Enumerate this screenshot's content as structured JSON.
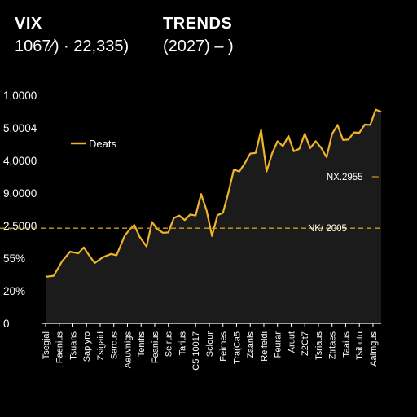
{
  "header": {
    "left_title": "VIX",
    "left_sub": "1067⁄) · 22,335)",
    "right_title": "TRENDS",
    "right_sub": "(2027) – )"
  },
  "chart_data": {
    "type": "line",
    "title": "",
    "xlabel": "",
    "ylabel": "",
    "y_ticks": [
      "0",
      "20%",
      "55%",
      "2,5000",
      "9,0000",
      "4,0000",
      "5,0004",
      "1,0000"
    ],
    "ylim": [
      0,
      7
    ],
    "grid": false,
    "legend_position": "top-left",
    "colors": {
      "line": "#f0b429",
      "fill": "#1b1b1b",
      "reference": "#d49a1e",
      "axis": "#ffffff",
      "background": "#000000"
    },
    "x_tick_labels": [
      "Tsegjal",
      "Faenius",
      "Tsuans",
      "Sapiyro",
      "Zsigaid",
      "Sarcus",
      "Aeuvnigs",
      "Tenifis",
      "Feanius",
      "Selrus",
      "Tarius",
      "C5 10017",
      "Sclour",
      "Feirhes",
      "Tra(Ca5",
      "Zaanis",
      "Reifeldi",
      "Feurar",
      "Aruut",
      "Z2Ct7",
      "Tsriaus",
      "Ztrtaes",
      "Taaius",
      "Tsibutu",
      "Aaimgus"
    ],
    "series": [
      {
        "name": "Deats",
        "x": [
          0.0,
          0.6,
          1.2,
          1.8,
          2.4,
          2.8,
          3.2,
          3.6,
          4.2,
          4.8,
          5.2,
          5.8,
          6.2,
          6.5,
          6.9,
          7.4,
          7.8,
          8.2,
          8.6,
          9.0,
          9.4,
          9.8,
          10.2,
          10.6,
          11.0,
          11.4,
          11.8,
          12.2,
          12.6,
          13.0,
          13.4,
          13.8,
          14.2,
          14.6,
          15.0,
          15.4,
          15.8,
          16.2,
          16.6,
          17.0,
          17.4,
          17.8,
          18.2,
          18.6,
          19.0,
          19.4,
          19.8,
          20.2,
          20.6,
          21.0,
          21.4,
          21.8,
          22.2,
          22.6,
          23.0,
          23.4,
          23.8,
          24.2,
          24.6
        ],
        "y": [
          1.43,
          1.46,
          1.9,
          2.2,
          2.15,
          2.33,
          2.08,
          1.85,
          2.03,
          2.13,
          2.09,
          2.69,
          2.9,
          3.02,
          2.65,
          2.36,
          3.11,
          2.89,
          2.78,
          2.79,
          3.23,
          3.31,
          3.17,
          3.34,
          3.31,
          3.97,
          3.47,
          2.68,
          3.32,
          3.39,
          4.01,
          4.72,
          4.66,
          4.91,
          5.21,
          5.23,
          5.93,
          4.66,
          5.21,
          5.59,
          5.44,
          5.75,
          5.28,
          5.36,
          5.82,
          5.38,
          5.59,
          5.39,
          5.1,
          5.81,
          6.09,
          5.63,
          5.64,
          5.86,
          5.85,
          6.1,
          6.09,
          6.56,
          6.49
        ]
      }
    ],
    "reference_lines": [
      {
        "label": "NK/ 2005",
        "y": 2.92
      }
    ],
    "annotations": [
      {
        "text": "NX.2955",
        "x": 22.5,
        "y": 4.5
      }
    ]
  }
}
